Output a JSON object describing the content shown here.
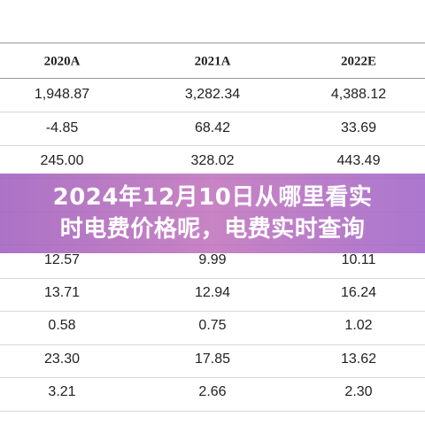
{
  "table": {
    "header": [
      "2020A",
      "2021A",
      "2022E"
    ],
    "rows": [
      [
        "1,948.87",
        "3,282.34",
        "4,388.12"
      ],
      [
        "-4.85",
        "68.42",
        "33.69"
      ],
      [
        "245.00",
        "328.02",
        "443.49"
      ],
      [
        "12.57",
        "9.99",
        "10.11"
      ],
      [
        "13.71",
        "12.94",
        "16.24"
      ],
      [
        "0.58",
        "0.75",
        "1.02"
      ],
      [
        "23.30",
        "17.85",
        "13.62"
      ],
      [
        "3.21",
        "2.66",
        "2.30"
      ]
    ]
  },
  "banner": {
    "lines": [
      "2024年12月10日从哪里看实",
      "时电费价格呢，电费实时查询"
    ]
  }
}
